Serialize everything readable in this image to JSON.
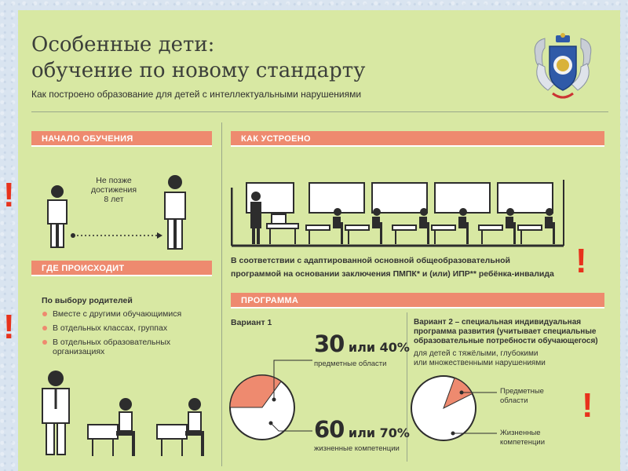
{
  "title": {
    "line1": "Особенные дети:",
    "line2": "обучение по новому стандарту"
  },
  "subtitle": "Как построено образование для детей с интеллектуальными нарушениями",
  "sections": {
    "start": {
      "header": "НАЧАЛО ОБУЧЕНИЯ",
      "age_note": [
        "Не позже",
        "достижения",
        "8 лет"
      ]
    },
    "where": {
      "header": "ГДЕ ПРОИСХОДИТ",
      "intro": "По выбору родителей",
      "items": [
        "Вместе с другими обучающимися",
        "В отдельных классах, группах",
        "В отдельных образовательных организациях"
      ]
    },
    "how": {
      "header": "КАК УСТРОЕНО",
      "note_line1": "В соответствии с адаптированной основной общеобразовательной",
      "note_line2": "программой на основании заключения ПМПК* и (или) ИПР** ребёнка-инвалида"
    },
    "program": {
      "header": "ПРОГРАММА",
      "variant1": {
        "label": "Вариант 1",
        "stat1_num": "30",
        "stat1_rest": " или 40%",
        "stat1_caption": "предметные области",
        "stat2_num": "60",
        "stat2_rest": " или 70%",
        "stat2_caption": "жизненные компетенции",
        "subject_share_percent": 35
      },
      "variant2": {
        "title_line1": "Вариант 2 – специальная индивидуальная",
        "title_line2": "программа развития (учитывает специальные",
        "title_line3": "образовательные потребности обучающегося)",
        "for_line1": "для детей с тяжёлыми, глубокими",
        "for_line2": "или множественными нарушениями",
        "legend_subject": [
          "Предметные",
          "области"
        ],
        "legend_life": [
          "Жизненные",
          "компетенции"
        ],
        "subject_share_percent": 12
      }
    }
  },
  "alerts": {
    "mark": "!"
  },
  "colors": {
    "background": "#d8e8a3",
    "accent": "#ee8a6f",
    "alert": "#e8321c",
    "ink": "#2d2d2d"
  }
}
